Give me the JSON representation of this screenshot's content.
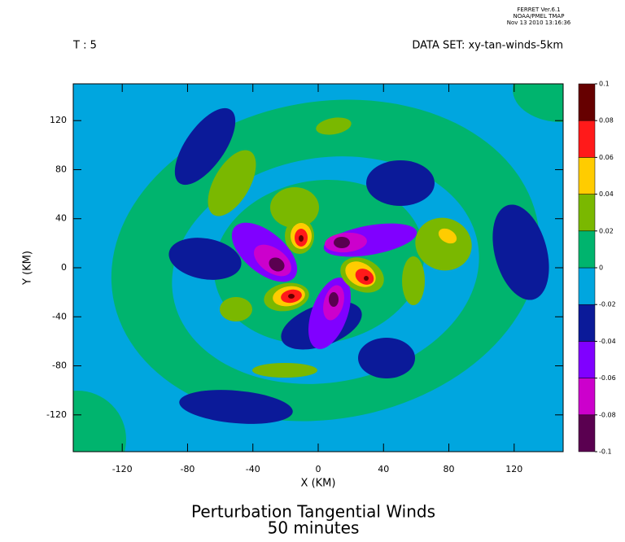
{
  "chart_data": {
    "type": "contour",
    "title": "Perturbation Tangential Winds",
    "subtitle": "50 minutes",
    "annotations": [
      "FERRET Ver.6.1",
      "NOAA/PMEL TMAP",
      "Nov 13 2010 13:16:36"
    ],
    "time_label": "T : 5",
    "dataset_label": "DATA SET: xy-tan-winds-5km",
    "xlabel": "X (KM)",
    "ylabel": "Y (KM)",
    "xlim": [
      -150,
      150
    ],
    "ylim": [
      -150,
      150
    ],
    "xticks": [
      -120,
      -80,
      -40,
      0,
      40,
      80,
      120
    ],
    "yticks": [
      -120,
      -80,
      -40,
      0,
      40,
      80,
      120
    ],
    "levels": [
      -0.1,
      -0.08,
      -0.06,
      -0.04,
      -0.02,
      0,
      0.02,
      0.04,
      0.06,
      0.08,
      0.1
    ],
    "colors": [
      "#5a0050",
      "#cc00cc",
      "#8000ff",
      "#0b1a99",
      "#00a6df",
      "#00b46e",
      "#7ab800",
      "#ffcc00",
      "#ff1a1a",
      "#660000"
    ]
  }
}
